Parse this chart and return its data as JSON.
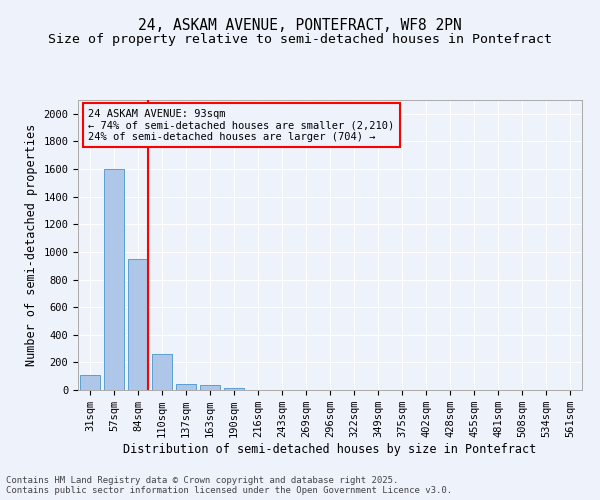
{
  "title_line1": "24, ASKAM AVENUE, PONTEFRACT, WF8 2PN",
  "title_line2": "Size of property relative to semi-detached houses in Pontefract",
  "xlabel": "Distribution of semi-detached houses by size in Pontefract",
  "ylabel": "Number of semi-detached properties",
  "categories": [
    "31sqm",
    "57sqm",
    "84sqm",
    "110sqm",
    "137sqm",
    "163sqm",
    "190sqm",
    "216sqm",
    "243sqm",
    "269sqm",
    "296sqm",
    "322sqm",
    "349sqm",
    "375sqm",
    "402sqm",
    "428sqm",
    "455sqm",
    "481sqm",
    "508sqm",
    "534sqm",
    "561sqm"
  ],
  "values": [
    110,
    1600,
    950,
    260,
    40,
    35,
    18,
    0,
    0,
    0,
    0,
    0,
    0,
    0,
    0,
    0,
    0,
    0,
    0,
    0,
    0
  ],
  "bar_color": "#aec6e8",
  "bar_edge_color": "#5a9fd4",
  "vline_color": "red",
  "annotation_title": "24 ASKAM AVENUE: 93sqm",
  "annotation_line1": "← 74% of semi-detached houses are smaller (2,210)",
  "annotation_line2": "24% of semi-detached houses are larger (704) →",
  "annotation_box_color": "red",
  "ylim": [
    0,
    2100
  ],
  "yticks": [
    0,
    200,
    400,
    600,
    800,
    1000,
    1200,
    1400,
    1600,
    1800,
    2000
  ],
  "footer_line1": "Contains HM Land Registry data © Crown copyright and database right 2025.",
  "footer_line2": "Contains public sector information licensed under the Open Government Licence v3.0.",
  "background_color": "#eef2fb",
  "grid_color": "#ffffff",
  "title_fontsize": 10.5,
  "subtitle_fontsize": 9.5,
  "axis_label_fontsize": 8.5,
  "tick_fontsize": 7.5,
  "annotation_fontsize": 7.5,
  "footer_fontsize": 6.5
}
